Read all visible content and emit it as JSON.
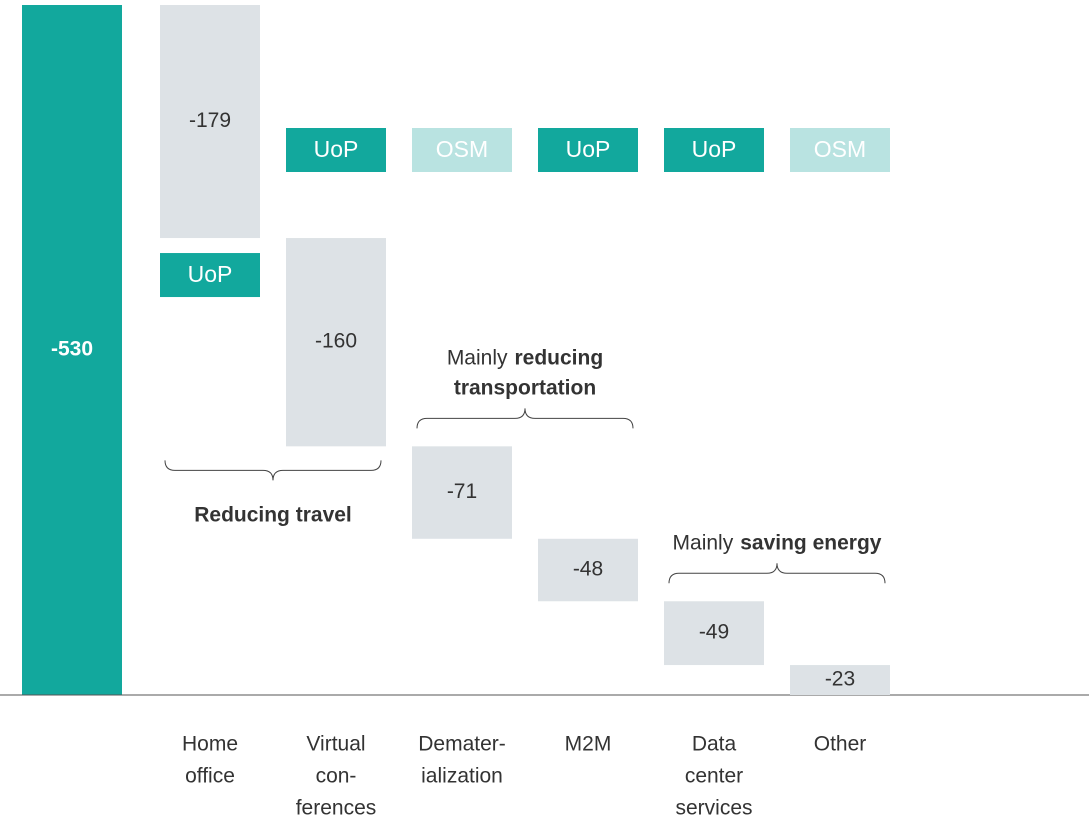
{
  "chart_data": {
    "type": "waterfall",
    "total": -530,
    "total_color": "#12a89d",
    "bar_color": "#dde2e6",
    "categories": [
      [
        "Home",
        "office"
      ],
      [
        "Virtual",
        "con-",
        "ferences"
      ],
      [
        "Demater-",
        "ialization"
      ],
      [
        "M2M"
      ],
      [
        "Data",
        "center",
        "services"
      ],
      [
        "Other"
      ]
    ],
    "values": [
      -179,
      -160,
      -71,
      -48,
      -49,
      -23
    ],
    "ylim": [
      -530,
      0
    ],
    "tags": [
      "UoP",
      "UoP",
      "OSM",
      "UoP",
      "UoP",
      "OSM"
    ],
    "tag_colors": {
      "UoP": "#12a89d",
      "OSM": "#b9e3e1"
    },
    "annotations": [
      {
        "categories": [
          0,
          1
        ],
        "position": "below",
        "lines": [
          [
            {
              "text": "Reducing travel",
              "bold": true
            }
          ]
        ]
      },
      {
        "categories": [
          2,
          3
        ],
        "position": "above",
        "lines": [
          [
            {
              "text": "Mainly",
              "bold": false
            },
            {
              "text": "reducing",
              "bold": true
            }
          ],
          [
            {
              "text": "transportation",
              "bold": true
            }
          ]
        ]
      },
      {
        "categories": [
          4,
          5
        ],
        "position": "above",
        "lines": [
          [
            {
              "text": "Mainly",
              "bold": false
            },
            {
              "text": "saving energy",
              "bold": true
            }
          ]
        ]
      }
    ]
  }
}
